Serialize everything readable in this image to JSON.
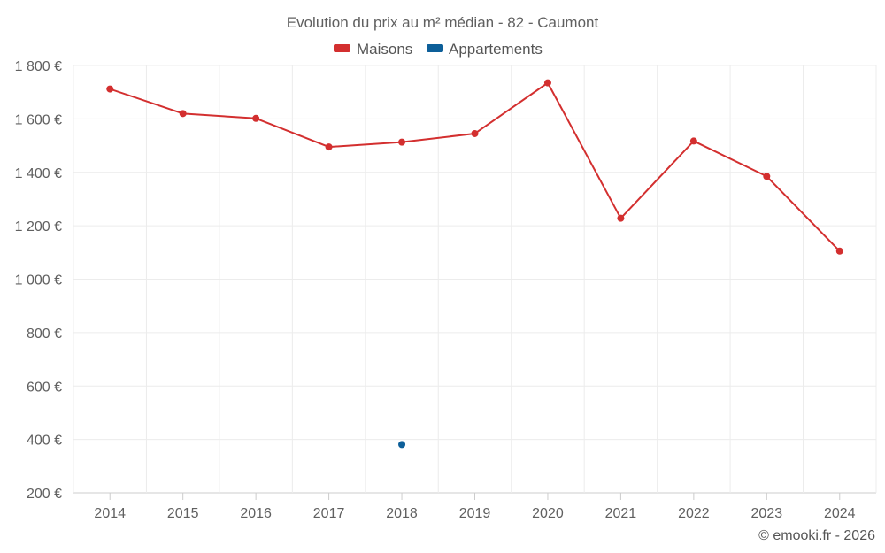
{
  "chart_data": {
    "type": "line",
    "title": "Evolution du prix au m² médian - 82 - Caumont",
    "categories": [
      "2014",
      "2015",
      "2016",
      "2017",
      "2018",
      "2019",
      "2020",
      "2021",
      "2022",
      "2023",
      "2024"
    ],
    "series": [
      {
        "name": "Maisons",
        "color": "#d32f2f",
        "values": [
          1712,
          1620,
          1602,
          1495,
          1513,
          1545,
          1735,
          1228,
          1517,
          1385,
          1105
        ]
      },
      {
        "name": "Appartements",
        "color": "#0d5f99",
        "values": [
          null,
          null,
          null,
          null,
          381,
          null,
          null,
          null,
          null,
          null,
          null
        ]
      }
    ],
    "yticks": [
      {
        "value": 200,
        "label": "200 €"
      },
      {
        "value": 400,
        "label": "400 €"
      },
      {
        "value": 600,
        "label": "600 €"
      },
      {
        "value": 800,
        "label": "800 €"
      },
      {
        "value": 1000,
        "label": "1 000 €"
      },
      {
        "value": 1200,
        "label": "1 200 €"
      },
      {
        "value": 1400,
        "label": "1 400 €"
      },
      {
        "value": 1600,
        "label": "1 600 €"
      },
      {
        "value": 1800,
        "label": "1 800 €"
      }
    ],
    "ylim": [
      200,
      1800
    ],
    "xlabel": "",
    "ylabel": "",
    "grid": true,
    "legend_position": "top-center"
  },
  "credit": "© emooki.fr - 2026"
}
